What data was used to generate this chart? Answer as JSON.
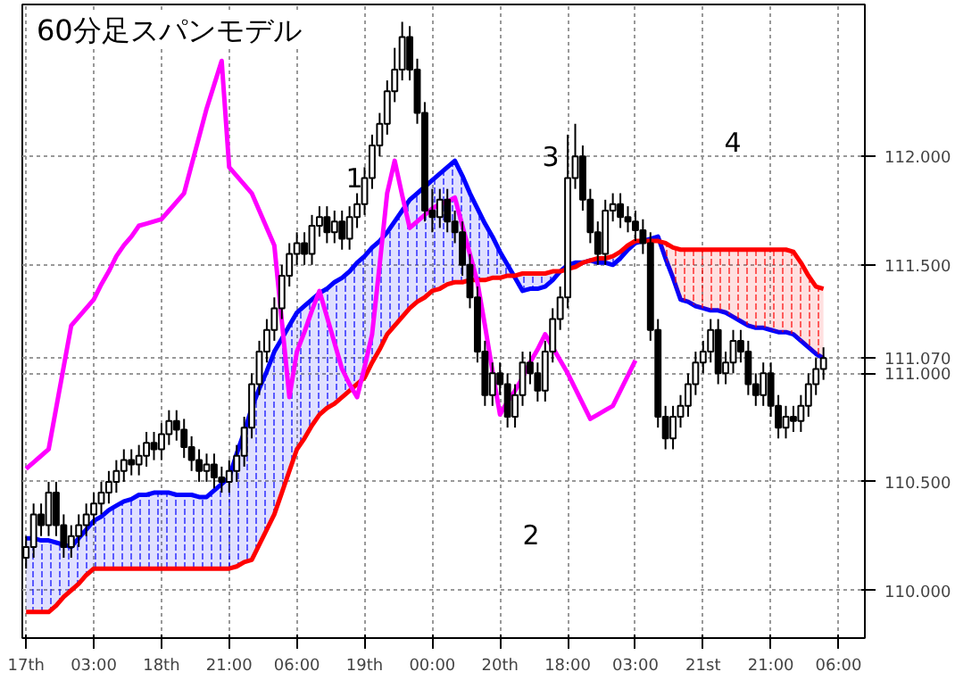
{
  "chart_data": {
    "type": "candlestick",
    "title": "60分足スパンモデル",
    "color": "#000000",
    "categories": [
      "17th",
      null,
      null,
      null,
      null,
      null,
      null,
      null,
      null,
      "03:00",
      null,
      null,
      null,
      null,
      null,
      null,
      null,
      null,
      "18th",
      null,
      null,
      null,
      null,
      null,
      null,
      null,
      null,
      "21:00",
      null,
      null,
      null,
      null,
      null,
      null,
      null,
      null,
      "06:00",
      null,
      null,
      null,
      null,
      null,
      null,
      null,
      null,
      "19th",
      null,
      null,
      null,
      null,
      null,
      null,
      null,
      null,
      "00:00",
      null,
      null,
      null,
      null,
      null,
      null,
      null,
      null,
      "20th",
      null,
      null,
      null,
      null,
      null,
      null,
      null,
      null,
      "18:00",
      null,
      null,
      null,
      null,
      null,
      null,
      null,
      null,
      "03:00",
      null,
      null,
      null,
      null,
      null,
      null,
      null,
      null,
      "21st",
      null,
      null,
      null,
      null,
      null,
      null,
      null,
      null,
      "21:00",
      null,
      null,
      null,
      null,
      null,
      null,
      null,
      null,
      "06:00",
      null,
      null,
      null
    ],
    "ohlc": [
      [
        110.15,
        110.25,
        110.1,
        110.2
      ],
      [
        110.2,
        110.4,
        110.15,
        110.35
      ],
      [
        110.35,
        110.4,
        110.25,
        110.3
      ],
      [
        110.3,
        110.5,
        110.25,
        110.45
      ],
      [
        110.45,
        110.5,
        110.25,
        110.3
      ],
      [
        110.3,
        110.35,
        110.15,
        110.2
      ],
      [
        110.2,
        110.3,
        110.15,
        110.25
      ],
      [
        110.25,
        110.35,
        110.2,
        110.3
      ],
      [
        110.3,
        110.4,
        110.25,
        110.35
      ],
      [
        110.35,
        110.45,
        110.3,
        110.4
      ],
      [
        110.4,
        110.5,
        110.35,
        110.45
      ],
      [
        110.45,
        110.55,
        110.4,
        110.5
      ],
      [
        110.5,
        110.6,
        110.45,
        110.55
      ],
      [
        110.55,
        110.65,
        110.5,
        110.6
      ],
      [
        110.6,
        110.65,
        110.53,
        110.58
      ],
      [
        110.58,
        110.67,
        110.53,
        110.62
      ],
      [
        110.62,
        110.73,
        110.57,
        110.68
      ],
      [
        110.68,
        110.73,
        110.6,
        110.65
      ],
      [
        110.65,
        110.77,
        110.6,
        110.72
      ],
      [
        110.72,
        110.83,
        110.67,
        110.78
      ],
      [
        110.78,
        110.83,
        110.69,
        110.74
      ],
      [
        110.74,
        110.79,
        110.61,
        110.66
      ],
      [
        110.66,
        110.71,
        110.55,
        110.6
      ],
      [
        110.6,
        110.65,
        110.5,
        110.55
      ],
      [
        110.55,
        110.63,
        110.5,
        110.58
      ],
      [
        110.58,
        110.63,
        110.47,
        110.52
      ],
      [
        110.52,
        110.57,
        110.45,
        110.5
      ],
      [
        110.5,
        110.6,
        110.45,
        110.55
      ],
      [
        110.55,
        110.67,
        110.5,
        110.62
      ],
      [
        110.62,
        110.8,
        110.57,
        110.75
      ],
      [
        110.75,
        111.0,
        110.7,
        110.95
      ],
      [
        110.95,
        111.15,
        110.9,
        111.1
      ],
      [
        111.1,
        111.25,
        111.05,
        111.2
      ],
      [
        111.2,
        111.35,
        111.15,
        111.3
      ],
      [
        111.3,
        111.5,
        111.25,
        111.45
      ],
      [
        111.45,
        111.6,
        111.4,
        111.55
      ],
      [
        111.55,
        111.65,
        111.5,
        111.6
      ],
      [
        111.6,
        111.65,
        111.5,
        111.55
      ],
      [
        111.55,
        111.73,
        111.5,
        111.68
      ],
      [
        111.68,
        111.77,
        111.63,
        111.72
      ],
      [
        111.72,
        111.77,
        111.6,
        111.65
      ],
      [
        111.65,
        111.75,
        111.6,
        111.7
      ],
      [
        111.7,
        111.75,
        111.57,
        111.62
      ],
      [
        111.62,
        111.77,
        111.57,
        111.72
      ],
      [
        111.72,
        111.83,
        111.67,
        111.78
      ],
      [
        111.78,
        111.95,
        111.73,
        111.9
      ],
      [
        111.9,
        112.1,
        111.85,
        112.05
      ],
      [
        112.05,
        112.2,
        112.0,
        112.15
      ],
      [
        112.15,
        112.35,
        112.1,
        112.3
      ],
      [
        112.3,
        112.5,
        112.25,
        112.4
      ],
      [
        112.4,
        112.62,
        112.35,
        112.55
      ],
      [
        112.55,
        112.6,
        112.35,
        112.4
      ],
      [
        112.4,
        112.45,
        112.15,
        112.2
      ],
      [
        112.2,
        112.25,
        111.7,
        111.75
      ],
      [
        111.75,
        111.85,
        111.65,
        111.72
      ],
      [
        111.72,
        111.85,
        111.67,
        111.8
      ],
      [
        111.8,
        111.85,
        111.65,
        111.7
      ],
      [
        111.7,
        111.75,
        111.6,
        111.65
      ],
      [
        111.65,
        111.7,
        111.45,
        111.5
      ],
      [
        111.5,
        111.55,
        111.3,
        111.35
      ],
      [
        111.35,
        111.4,
        111.05,
        111.1
      ],
      [
        111.1,
        111.15,
        110.85,
        110.9
      ],
      [
        110.9,
        111.05,
        110.85,
        111.0
      ],
      [
        111.0,
        111.05,
        110.9,
        110.95
      ],
      [
        110.95,
        111.0,
        110.75,
        110.8
      ],
      [
        110.8,
        110.95,
        110.75,
        110.9
      ],
      [
        110.9,
        111.1,
        110.85,
        111.05
      ],
      [
        111.05,
        111.1,
        110.95,
        111.0
      ],
      [
        111.0,
        111.05,
        110.87,
        110.92
      ],
      [
        110.92,
        111.15,
        110.87,
        111.1
      ],
      [
        111.1,
        111.3,
        111.05,
        111.25
      ],
      [
        111.25,
        111.4,
        111.2,
        111.35
      ],
      [
        111.35,
        112.1,
        111.3,
        111.9
      ],
      [
        111.9,
        112.15,
        111.85,
        112.0
      ],
      [
        112.0,
        112.05,
        111.75,
        111.8
      ],
      [
        111.8,
        111.85,
        111.6,
        111.65
      ],
      [
        111.65,
        111.7,
        111.5,
        111.55
      ],
      [
        111.55,
        111.8,
        111.5,
        111.75
      ],
      [
        111.75,
        111.83,
        111.7,
        111.78
      ],
      [
        111.78,
        111.83,
        111.67,
        111.72
      ],
      [
        111.72,
        111.77,
        111.65,
        111.7
      ],
      [
        111.7,
        111.75,
        111.61,
        111.66
      ],
      [
        111.66,
        111.71,
        111.55,
        111.6
      ],
      [
        111.6,
        111.65,
        111.15,
        111.2
      ],
      [
        111.2,
        111.25,
        110.75,
        110.8
      ],
      [
        110.8,
        110.85,
        110.65,
        110.7
      ],
      [
        110.7,
        110.85,
        110.65,
        110.8
      ],
      [
        110.8,
        110.9,
        110.75,
        110.85
      ],
      [
        110.85,
        111.0,
        110.8,
        110.95
      ],
      [
        110.95,
        111.1,
        110.9,
        111.05
      ],
      [
        111.05,
        111.15,
        111.0,
        111.1
      ],
      [
        111.1,
        111.25,
        111.05,
        111.2
      ],
      [
        111.2,
        111.25,
        110.95,
        111.0
      ],
      [
        111.0,
        111.1,
        110.95,
        111.05
      ],
      [
        111.05,
        111.2,
        111.0,
        111.15
      ],
      [
        111.15,
        111.2,
        111.05,
        111.1
      ],
      [
        111.1,
        111.15,
        110.9,
        110.95
      ],
      [
        110.95,
        111.0,
        110.85,
        110.9
      ],
      [
        110.9,
        111.05,
        110.85,
        111.0
      ],
      [
        111.0,
        111.05,
        110.8,
        110.85
      ],
      [
        110.85,
        110.9,
        110.7,
        110.75
      ],
      [
        110.75,
        110.85,
        110.7,
        110.8
      ],
      [
        110.8,
        110.85,
        110.73,
        110.78
      ],
      [
        110.78,
        110.9,
        110.73,
        110.85
      ],
      [
        110.85,
        111.0,
        110.8,
        110.95
      ],
      [
        110.95,
        111.07,
        110.9,
        111.02
      ],
      [
        111.02,
        111.12,
        110.97,
        111.07
      ],
      null,
      null,
      null,
      null,
      null
    ],
    "series": [
      {
        "type": "line",
        "color": "#0000ff",
        "values": [
          110.24,
          110.24,
          110.23,
          110.23,
          110.22,
          110.21,
          110.2,
          110.24,
          110.28,
          110.32,
          110.34,
          110.37,
          110.39,
          110.41,
          110.42,
          110.44,
          110.44,
          110.45,
          110.45,
          110.45,
          110.44,
          110.44,
          110.44,
          110.43,
          110.43,
          110.46,
          110.49,
          110.52,
          110.63,
          110.73,
          110.84,
          110.93,
          111.01,
          111.1,
          111.16,
          111.22,
          111.28,
          111.31,
          111.34,
          111.37,
          111.39,
          111.42,
          111.44,
          111.47,
          111.51,
          111.54,
          111.58,
          111.61,
          111.65,
          111.7,
          111.75,
          111.8,
          111.83,
          111.86,
          111.89,
          111.92,
          111.95,
          111.98,
          111.91,
          111.83,
          111.76,
          111.69,
          111.63,
          111.56,
          111.5,
          111.44,
          111.38,
          111.39,
          111.39,
          111.4,
          111.43,
          111.47,
          111.5,
          111.51,
          111.51,
          111.52,
          111.51,
          111.51,
          111.5,
          111.53,
          111.57,
          111.6,
          111.61,
          111.62,
          111.63,
          111.53,
          111.44,
          111.34,
          111.33,
          111.31,
          111.3,
          111.29,
          111.29,
          111.28,
          111.26,
          111.24,
          111.22,
          111.21,
          111.21,
          111.2,
          111.19,
          111.19,
          111.18,
          111.15,
          111.12,
          111.09,
          111.07,
          null,
          null,
          null,
          null,
          null
        ],
        "lower": [
          109.9,
          109.9,
          109.9,
          109.9,
          109.93,
          109.97,
          110.0,
          110.03,
          110.07,
          110.1,
          110.1,
          110.1,
          110.1,
          110.1,
          110.1,
          110.1,
          110.1,
          110.1,
          110.1,
          110.1,
          110.1,
          110.1,
          110.1,
          110.1,
          110.1,
          110.1,
          110.1,
          110.1,
          110.11,
          110.13,
          110.14,
          110.21,
          110.28,
          110.35,
          110.45,
          110.55,
          110.65,
          110.7,
          110.76,
          110.81,
          110.84,
          110.86,
          110.89,
          110.92,
          110.95,
          110.98,
          111.05,
          111.11,
          111.18,
          111.22,
          111.26,
          111.3,
          111.33,
          111.35,
          111.38,
          111.39,
          111.41,
          111.42,
          111.42,
          111.43,
          111.43,
          111.43,
          111.44,
          111.44,
          111.45,
          111.45,
          111.46,
          111.46,
          111.46,
          111.46,
          111.47,
          111.47,
          111.48,
          111.49,
          111.51,
          111.52,
          111.53,
          111.53,
          111.54,
          111.56,
          111.59,
          111.61,
          111.61,
          111.61,
          111.61,
          null,
          null,
          null,
          null,
          null,
          null,
          null,
          null,
          null,
          null,
          null,
          null,
          null,
          null,
          null,
          null,
          null,
          null,
          null,
          null,
          null,
          null,
          null,
          null,
          null,
          null,
          null
        ],
        "upper": [
          110.24,
          110.24,
          110.23,
          110.23,
          110.22,
          110.21,
          110.2,
          110.24,
          110.28,
          110.32,
          110.34,
          110.37,
          110.39,
          110.41,
          110.42,
          110.44,
          110.44,
          110.45,
          110.45,
          110.45,
          110.44,
          110.44,
          110.44,
          110.43,
          110.43,
          110.46,
          110.49,
          110.52,
          110.63,
          110.73,
          110.84,
          110.93,
          111.01,
          111.1,
          111.16,
          111.22,
          111.28,
          111.31,
          111.34,
          111.37,
          111.39,
          111.42,
          111.44,
          111.47,
          111.51,
          111.54,
          111.58,
          111.61,
          111.65,
          111.7,
          111.75,
          111.8,
          111.83,
          111.86,
          111.89,
          111.92,
          111.95,
          111.98,
          111.91,
          111.83,
          111.76,
          111.69,
          111.63,
          111.56,
          111.5,
          111.44,
          111.38,
          111.39,
          111.39,
          111.4,
          111.43,
          111.47,
          111.5,
          111.51,
          111.51,
          111.52,
          111.51,
          111.51,
          111.5,
          111.53,
          111.57,
          111.6,
          111.61,
          111.62,
          111.63,
          null,
          null,
          null,
          null,
          null,
          null,
          null,
          null,
          null,
          null,
          null,
          null,
          null,
          null,
          null,
          null,
          null,
          null,
          null,
          null,
          null,
          null,
          null,
          null,
          null,
          null,
          null
        ]
      },
      {
        "type": "line",
        "color": "#ff0000",
        "values": [
          109.9,
          109.9,
          109.9,
          109.9,
          109.93,
          109.97,
          110.0,
          110.03,
          110.07,
          110.1,
          110.1,
          110.1,
          110.1,
          110.1,
          110.1,
          110.1,
          110.1,
          110.1,
          110.1,
          110.1,
          110.1,
          110.1,
          110.1,
          110.1,
          110.1,
          110.1,
          110.1,
          110.1,
          110.11,
          110.13,
          110.14,
          110.21,
          110.28,
          110.35,
          110.45,
          110.55,
          110.65,
          110.7,
          110.76,
          110.81,
          110.84,
          110.86,
          110.89,
          110.92,
          110.95,
          110.98,
          111.05,
          111.11,
          111.18,
          111.22,
          111.26,
          111.3,
          111.33,
          111.35,
          111.38,
          111.39,
          111.41,
          111.42,
          111.42,
          111.43,
          111.43,
          111.43,
          111.44,
          111.44,
          111.45,
          111.45,
          111.46,
          111.46,
          111.46,
          111.46,
          111.47,
          111.47,
          111.48,
          111.49,
          111.51,
          111.52,
          111.53,
          111.53,
          111.54,
          111.56,
          111.59,
          111.61,
          111.61,
          111.61,
          111.61,
          111.6,
          111.58,
          111.57,
          111.57,
          111.57,
          111.57,
          111.57,
          111.57,
          111.57,
          111.57,
          111.57,
          111.57,
          111.57,
          111.57,
          111.57,
          111.57,
          111.57,
          111.56,
          111.51,
          111.45,
          111.4,
          111.39,
          null,
          null,
          null,
          null,
          null
        ],
        "lower": [
          null,
          null,
          null,
          null,
          null,
          null,
          null,
          null,
          null,
          null,
          null,
          null,
          null,
          null,
          null,
          null,
          null,
          null,
          null,
          null,
          null,
          null,
          null,
          null,
          null,
          null,
          null,
          null,
          null,
          null,
          null,
          null,
          null,
          null,
          null,
          null,
          null,
          null,
          null,
          null,
          null,
          null,
          null,
          null,
          null,
          null,
          null,
          null,
          null,
          null,
          null,
          null,
          null,
          null,
          null,
          null,
          null,
          null,
          null,
          null,
          null,
          null,
          null,
          null,
          null,
          null,
          null,
          null,
          null,
          null,
          null,
          null,
          null,
          null,
          null,
          null,
          null,
          null,
          null,
          null,
          null,
          null,
          null,
          null,
          111.63,
          111.53,
          111.44,
          111.34,
          111.33,
          111.31,
          111.3,
          111.29,
          111.29,
          111.28,
          111.26,
          111.24,
          111.22,
          111.21,
          111.21,
          111.2,
          111.19,
          111.19,
          111.18,
          111.15,
          111.12,
          111.09,
          111.07,
          null,
          null,
          null,
          null,
          null
        ],
        "upper": [
          null,
          null,
          null,
          null,
          null,
          null,
          null,
          null,
          null,
          null,
          null,
          null,
          null,
          null,
          null,
          null,
          null,
          null,
          null,
          null,
          null,
          null,
          null,
          null,
          null,
          null,
          null,
          null,
          null,
          null,
          null,
          null,
          null,
          null,
          null,
          null,
          null,
          null,
          null,
          null,
          null,
          null,
          null,
          null,
          null,
          null,
          null,
          null,
          null,
          null,
          null,
          null,
          null,
          null,
          null,
          null,
          null,
          null,
          null,
          null,
          null,
          null,
          null,
          null,
          null,
          null,
          null,
          null,
          null,
          null,
          null,
          null,
          null,
          null,
          null,
          null,
          null,
          null,
          null,
          null,
          null,
          null,
          null,
          null,
          111.61,
          111.6,
          111.58,
          111.57,
          111.57,
          111.57,
          111.57,
          111.57,
          111.57,
          111.57,
          111.57,
          111.57,
          111.57,
          111.57,
          111.57,
          111.57,
          111.57,
          111.57,
          111.56,
          111.51,
          111.45,
          111.4,
          111.39,
          null,
          null,
          null,
          null,
          null
        ]
      },
      {
        "type": "line",
        "color": "#ff00ff",
        "values": [
          110.56,
          110.59,
          110.62,
          110.65,
          110.84,
          111.03,
          111.22,
          111.26,
          111.3,
          111.34,
          111.41,
          111.47,
          111.54,
          111.59,
          111.63,
          111.68,
          111.69,
          111.7,
          111.71,
          111.75,
          111.79,
          111.83,
          111.96,
          112.09,
          112.22,
          112.33,
          112.44,
          111.95,
          111.91,
          111.87,
          111.83,
          111.75,
          111.67,
          111.59,
          111.24,
          110.89,
          111.1,
          111.19,
          111.29,
          111.38,
          111.26,
          111.14,
          111.02,
          110.95,
          110.89,
          111.03,
          111.18,
          111.5,
          111.83,
          111.98,
          111.82,
          111.67,
          111.7,
          111.73,
          111.76,
          111.78,
          111.79,
          111.81,
          111.68,
          111.55,
          111.42,
          111.22,
          111.01,
          110.81,
          110.87,
          110.92,
          110.98,
          111.05,
          111.11,
          111.18,
          111.12,
          111.06,
          111.0,
          110.93,
          110.86,
          110.79,
          110.81,
          110.83,
          110.85,
          110.92,
          110.99,
          111.06,
          null,
          null,
          null,
          null,
          null,
          null,
          null,
          null,
          null,
          null,
          null,
          null,
          null,
          null,
          null,
          null,
          null,
          null,
          null,
          null,
          null,
          null,
          null,
          null,
          null,
          null,
          null,
          null,
          null,
          null
        ]
      }
    ],
    "ylim": [
      109.78,
      112.7
    ],
    "yticks": [
      {
        "value": 110,
        "label": "110.000"
      },
      {
        "value": 110.5,
        "label": "110.500"
      },
      {
        "value": 111,
        "label": "111.000"
      },
      {
        "value": 111.07,
        "label": "111.070"
      },
      {
        "value": 111.5,
        "label": "111.500"
      },
      {
        "value": 112,
        "label": "112.000"
      }
    ],
    "grid": true,
    "annotations": [
      "1",
      "2",
      "3",
      "4"
    ]
  }
}
